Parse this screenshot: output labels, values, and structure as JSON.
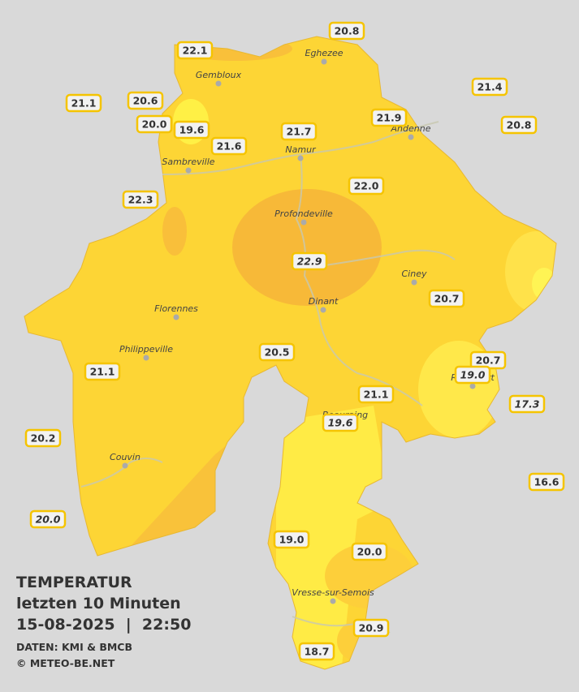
{
  "header": {
    "title": "TEMPERATUR",
    "subtitle": "letzten 10 Minuten",
    "datetime": "15-08-2025  |  22:50",
    "source": "DATEN: KMI & BMCB",
    "copyright": "© METEO-BE.NET"
  },
  "towns": [
    {
      "label": "Eghezee"
    },
    {
      "label": "Gembloux"
    },
    {
      "label": "Andenne"
    },
    {
      "label": "Namur"
    },
    {
      "label": "Sambreville"
    },
    {
      "label": "Profondeville"
    },
    {
      "label": "Ciney"
    },
    {
      "label": "Dinant"
    },
    {
      "label": "Florennes"
    },
    {
      "label": "Philippeville"
    },
    {
      "label": "Rochefort"
    },
    {
      "label": "Beauraing"
    },
    {
      "label": "Couvin"
    },
    {
      "label": "Vresse-sur-Semois"
    }
  ],
  "stations": [
    {
      "label": "22.1"
    },
    {
      "label": "20.8"
    },
    {
      "label": "21.1"
    },
    {
      "label": "20.6"
    },
    {
      "label": "20.0"
    },
    {
      "label": "19.6"
    },
    {
      "label": "21.6"
    },
    {
      "label": "21.7"
    },
    {
      "label": "21.9"
    },
    {
      "label": "21.4"
    },
    {
      "label": "20.8"
    },
    {
      "label": "22.3"
    },
    {
      "label": "22.0"
    },
    {
      "label": "22.9",
      "italic": true
    },
    {
      "label": "20.7"
    },
    {
      "label": "20.5"
    },
    {
      "label": "20.7"
    },
    {
      "label": "19.0",
      "italic": true
    },
    {
      "label": "21.1"
    },
    {
      "label": "17.3",
      "italic": true
    },
    {
      "label": "19.6",
      "italic": true
    },
    {
      "label": "21.1"
    },
    {
      "label": "20.2"
    },
    {
      "label": "16.6"
    },
    {
      "label": "20.0",
      "italic": true
    },
    {
      "label": "19.0"
    },
    {
      "label": "20.0"
    },
    {
      "label": "20.9"
    },
    {
      "label": "18.7"
    }
  ]
}
